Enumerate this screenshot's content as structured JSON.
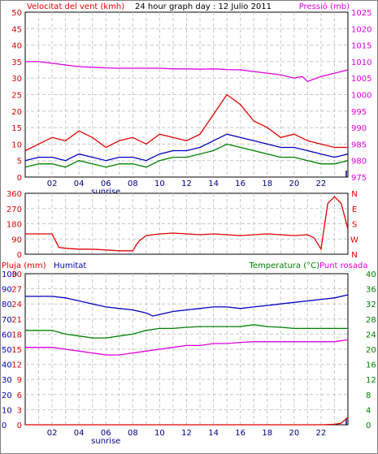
{
  "header": {
    "left_title": "Velocitat del vent (kmh)",
    "center_title": "24 hour graph day : 12 Julio 2011",
    "right_title": "Pressió (mb)"
  },
  "colors": {
    "red": "#e00000",
    "blue": "#0000c0",
    "green": "#008000",
    "magenta": "#e000e0",
    "grid": "#c8c8c8",
    "axis": "#000000"
  },
  "x_axis": {
    "tick_labels": [
      "02",
      "04",
      "06",
      "08",
      "10",
      "12",
      "14",
      "16",
      "18",
      "20",
      "22"
    ],
    "sunrise_label": "sunrise"
  },
  "chart_data": [
    {
      "type": "line",
      "name": "wind-and-pressure",
      "left_axis": {
        "label": "Velocitat del vent (kmh)",
        "ticks": [
          0,
          5,
          10,
          15,
          20,
          25,
          30,
          35,
          40,
          45,
          50
        ],
        "range": [
          0,
          50
        ]
      },
      "right_axis": {
        "label": "Pressió (mb)",
        "ticks": [
          975,
          980,
          985,
          990,
          995,
          1000,
          1005,
          1010,
          1015,
          1020,
          1025
        ],
        "range": [
          975,
          1025
        ]
      },
      "x_range_hours": [
        0,
        24
      ],
      "series": [
        {
          "color": "magenta",
          "axis": "right",
          "x": [
            0,
            1,
            2,
            3,
            4,
            5,
            6,
            7,
            8,
            9,
            10,
            11,
            12,
            13,
            14,
            15,
            16,
            17,
            18,
            19,
            20,
            20.6,
            21,
            22,
            23,
            24
          ],
          "values": [
            1010,
            1010,
            1009.5,
            1009,
            1008.5,
            1008.3,
            1008.1,
            1008,
            1008,
            1008,
            1008,
            1007.8,
            1007.8,
            1007.7,
            1007.8,
            1007.6,
            1007.5,
            1007,
            1006.5,
            1006,
            1005,
            1005.5,
            1004,
            1005.5,
            1006.5,
            1007.5
          ]
        },
        {
          "color": "red",
          "axis": "left",
          "x": [
            0,
            1,
            2,
            3,
            4,
            5,
            6,
            7,
            8,
            9,
            10,
            11,
            12,
            13,
            14,
            15,
            16,
            17,
            18,
            19,
            20,
            21,
            22,
            23,
            24
          ],
          "values": [
            8,
            10,
            12,
            11,
            14,
            12,
            9,
            11,
            12,
            10,
            13,
            12,
            11,
            13,
            19,
            25,
            22,
            17,
            15,
            12,
            13,
            11,
            10,
            9,
            9
          ]
        },
        {
          "color": "blue",
          "axis": "left",
          "x": [
            0,
            1,
            2,
            3,
            4,
            5,
            6,
            7,
            8,
            9,
            10,
            11,
            12,
            13,
            14,
            15,
            16,
            17,
            18,
            19,
            20,
            21,
            22,
            23,
            24
          ],
          "values": [
            5,
            6,
            6,
            5,
            7,
            6,
            5,
            6,
            6,
            5,
            7,
            8,
            8,
            9,
            11,
            13,
            12,
            11,
            10,
            9,
            9,
            8,
            7,
            6,
            7
          ]
        },
        {
          "color": "green",
          "axis": "left",
          "x": [
            0,
            1,
            2,
            3,
            4,
            5,
            6,
            7,
            8,
            9,
            10,
            11,
            12,
            13,
            14,
            15,
            16,
            17,
            18,
            19,
            20,
            21,
            22,
            23,
            24
          ],
          "values": [
            3,
            4,
            4,
            3,
            5,
            4,
            3,
            4,
            4,
            3,
            5,
            6,
            6,
            7,
            8,
            10,
            9,
            8,
            7,
            6,
            6,
            5,
            4,
            4,
            5
          ]
        }
      ]
    },
    {
      "type": "line",
      "name": "wind-direction",
      "left_axis": {
        "ticks": [
          0,
          90,
          180,
          270,
          360
        ],
        "range": [
          0,
          360
        ]
      },
      "right_axis": {
        "ticks": [
          "N",
          "W",
          "S",
          "E",
          "N"
        ]
      },
      "series": [
        {
          "color": "red",
          "axis": "left",
          "x": [
            0,
            2,
            2.5,
            3,
            4,
            5,
            6,
            7,
            8,
            8.3,
            8.5,
            9,
            10,
            11,
            12,
            13,
            14,
            15,
            16,
            17,
            18,
            19,
            20,
            21,
            21.5,
            22,
            22.5,
            23,
            23.5,
            24
          ],
          "values": [
            120,
            120,
            40,
            35,
            30,
            30,
            25,
            20,
            20,
            60,
            80,
            110,
            120,
            125,
            120,
            115,
            120,
            115,
            110,
            115,
            120,
            115,
            110,
            115,
            95,
            30,
            300,
            340,
            300,
            150
          ]
        }
      ]
    },
    {
      "type": "line",
      "name": "rain-humidity-temperature",
      "axes": {
        "rain_mm": {
          "label": "Pluja (mm)",
          "ticks": [
            0,
            3,
            6,
            9,
            12,
            15,
            18,
            21,
            24,
            27,
            30
          ],
          "range": [
            0,
            30
          ]
        },
        "humidity": {
          "label": "Humitat",
          "ticks": [
            0,
            10,
            20,
            30,
            40,
            50,
            60,
            70,
            80,
            90,
            100
          ],
          "range": [
            0,
            100
          ]
        },
        "temperature": {
          "label": "Temperatura (°C)",
          "ticks": [
            0,
            4,
            8,
            12,
            16,
            20,
            24,
            28,
            32,
            36,
            40
          ],
          "range": [
            0,
            40
          ]
        },
        "dew_point": {
          "label": "Punt rosada"
        }
      },
      "series": [
        {
          "color": "blue",
          "axis": "humidity",
          "x": [
            0,
            2,
            3,
            4,
            5,
            6,
            7,
            8,
            9,
            9.5,
            10,
            11,
            12,
            13,
            14,
            15,
            16,
            17,
            18,
            19,
            20,
            21,
            22,
            23,
            24
          ],
          "values": [
            85,
            85,
            84,
            82,
            80,
            78,
            77,
            76,
            74,
            72,
            73,
            75,
            76,
            77,
            78,
            78,
            77,
            78,
            79,
            80,
            81,
            82,
            83,
            84,
            86
          ]
        },
        {
          "color": "green",
          "axis": "temperature",
          "x": [
            0,
            2,
            3,
            4,
            5,
            6,
            7,
            8,
            9,
            10,
            11,
            12,
            13,
            14,
            15,
            16,
            17,
            18,
            19,
            20,
            21,
            22,
            23,
            24
          ],
          "values": [
            25,
            25,
            24,
            23.5,
            23,
            23,
            23.5,
            24,
            25,
            25.5,
            25.5,
            25.8,
            26,
            26,
            26,
            26,
            26.5,
            26,
            25.8,
            25.5,
            25.5,
            25.5,
            25.5,
            25.5
          ]
        },
        {
          "color": "magenta",
          "axis": "temperature",
          "x": [
            0,
            2,
            3,
            4,
            5,
            6,
            7,
            8,
            9,
            10,
            11,
            12,
            13,
            14,
            15,
            16,
            17,
            18,
            19,
            20,
            21,
            22,
            23,
            24
          ],
          "values": [
            20.5,
            20.5,
            20,
            19.5,
            19,
            18.5,
            18.5,
            19,
            19.5,
            20,
            20.5,
            21,
            21,
            21.5,
            21.5,
            21.8,
            22,
            22,
            22,
            22,
            22,
            22,
            22,
            22.5
          ]
        },
        {
          "color": "red",
          "axis": "rain_mm",
          "x": [
            0,
            22,
            23,
            23.5,
            24
          ],
          "values": [
            0,
            0,
            0.1,
            0.3,
            1.5
          ]
        }
      ]
    }
  ]
}
